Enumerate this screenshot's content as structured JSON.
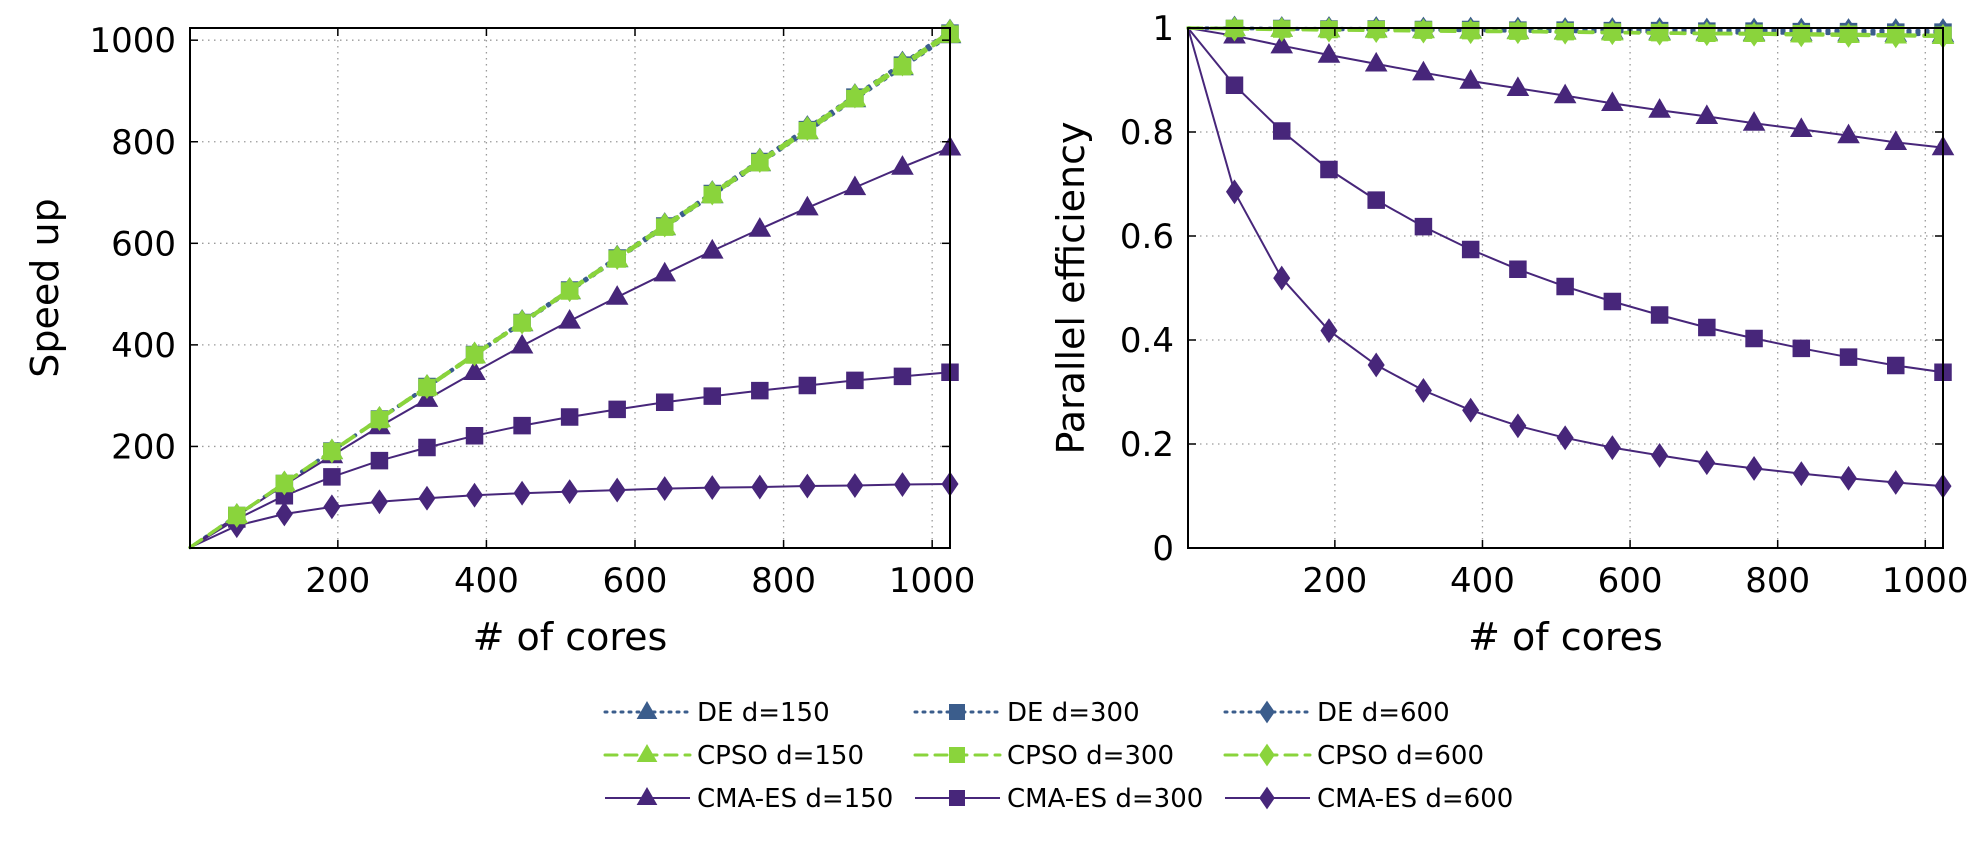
{
  "chart_data": [
    {
      "type": "line",
      "xlabel": "# of cores",
      "ylabel": "Speed up",
      "xlim": [
        1,
        1024
      ],
      "ylim": [
        0,
        1024
      ],
      "xticks": [
        200,
        400,
        600,
        800,
        1000
      ],
      "yticks": [
        200,
        400,
        600,
        800,
        1000
      ],
      "grid": true,
      "x": [
        1,
        64,
        128,
        192,
        256,
        320,
        384,
        448,
        512,
        576,
        640,
        704,
        768,
        832,
        896,
        960,
        1024
      ],
      "series": [
        {
          "name": "DE d=150",
          "values": [
            1,
            63,
            127,
            190,
            253,
            316,
            379,
            442,
            505,
            568,
            631,
            694,
            757,
            820,
            883,
            946,
            1009
          ]
        },
        {
          "name": "DE d=300",
          "values": [
            1,
            64,
            127,
            191,
            254,
            318,
            381,
            444,
            508,
            571,
            634,
            698,
            761,
            824,
            888,
            951,
            1014
          ]
        },
        {
          "name": "DE d=600",
          "values": [
            1,
            64,
            128,
            191,
            255,
            318,
            382,
            446,
            509,
            573,
            637,
            700,
            764,
            828,
            891,
            955,
            1018
          ]
        },
        {
          "name": "CPSO d=150",
          "values": [
            1,
            64,
            127,
            190,
            253,
            316,
            379,
            443,
            506,
            569,
            632,
            695,
            758,
            821,
            885,
            948,
            1011
          ]
        },
        {
          "name": "CPSO d=300",
          "values": [
            1,
            64,
            127,
            190,
            253,
            316,
            380,
            443,
            506,
            569,
            632,
            696,
            759,
            822,
            885,
            948,
            1012
          ]
        },
        {
          "name": "CPSO d=600",
          "values": [
            1,
            64,
            128,
            191,
            255,
            318,
            382,
            445,
            509,
            572,
            636,
            699,
            763,
            826,
            890,
            953,
            1017
          ]
        },
        {
          "name": "CMA-ES d=150",
          "values": [
            1,
            63,
            124,
            182,
            239,
            293,
            346,
            398,
            447,
            494,
            540,
            585,
            628,
            670,
            710,
            750,
            788
          ]
        },
        {
          "name": "CMA-ES d=300",
          "values": [
            1,
            57,
            103,
            140,
            172,
            198,
            221,
            241,
            258,
            273,
            287,
            299,
            310,
            320,
            330,
            338,
            346
          ]
        },
        {
          "name": "CMA-ES d=600",
          "values": [
            1,
            44,
            67,
            81,
            91,
            98,
            104,
            108,
            111,
            114,
            117,
            119,
            120,
            122,
            123,
            125,
            126
          ]
        }
      ]
    },
    {
      "type": "line",
      "xlabel": "# of cores",
      "ylabel": "Parallel efficiency",
      "xlim": [
        1,
        1024
      ],
      "ylim": [
        0,
        1
      ],
      "xticks": [
        200,
        400,
        600,
        800,
        1000
      ],
      "yticks": [
        0,
        0.2,
        0.4,
        0.6,
        0.8,
        1
      ],
      "grid": true,
      "x": [
        1,
        64,
        128,
        192,
        256,
        320,
        384,
        448,
        512,
        576,
        640,
        704,
        768,
        832,
        896,
        960,
        1024
      ],
      "series": [
        {
          "name": "DE d=150",
          "values": [
            1,
            0.999,
            0.998,
            0.997,
            0.997,
            0.996,
            0.995,
            0.994,
            0.993,
            0.993,
            0.992,
            0.991,
            0.99,
            0.99,
            0.989,
            0.988,
            0.987
          ]
        },
        {
          "name": "DE d=300",
          "values": [
            1,
            0.999,
            0.999,
            0.998,
            0.998,
            0.997,
            0.997,
            0.996,
            0.996,
            0.995,
            0.995,
            0.994,
            0.994,
            0.993,
            0.993,
            0.992,
            0.992
          ]
        },
        {
          "name": "DE d=600",
          "values": [
            1,
            1,
            0.999,
            0.999,
            0.999,
            0.998,
            0.998,
            0.998,
            0.997,
            0.997,
            0.997,
            0.996,
            0.996,
            0.996,
            0.995,
            0.995,
            0.995
          ]
        },
        {
          "name": "CPSO d=150",
          "values": [
            1,
            0.999,
            0.998,
            0.997,
            0.996,
            0.995,
            0.994,
            0.993,
            0.992,
            0.991,
            0.99,
            0.989,
            0.988,
            0.987,
            0.986,
            0.985,
            0.984
          ]
        },
        {
          "name": "CPSO d=300",
          "values": [
            1,
            0.999,
            0.998,
            0.997,
            0.997,
            0.996,
            0.995,
            0.994,
            0.993,
            0.992,
            0.991,
            0.99,
            0.99,
            0.989,
            0.988,
            0.987,
            0.986
          ]
        },
        {
          "name": "CPSO d=600",
          "values": [
            1,
            0.998,
            0.997,
            0.996,
            0.995,
            0.994,
            0.993,
            0.993,
            0.992,
            0.991,
            0.99,
            0.989,
            0.988,
            0.987,
            0.986,
            0.985,
            0.984
          ]
        },
        {
          "name": "CMA-ES d=150",
          "values": [
            1,
            0.985,
            0.966,
            0.948,
            0.931,
            0.914,
            0.898,
            0.884,
            0.87,
            0.855,
            0.842,
            0.83,
            0.817,
            0.805,
            0.793,
            0.78,
            0.77
          ]
        },
        {
          "name": "CMA-ES d=300",
          "values": [
            1,
            0.89,
            0.802,
            0.728,
            0.669,
            0.618,
            0.574,
            0.536,
            0.503,
            0.474,
            0.448,
            0.424,
            0.403,
            0.384,
            0.367,
            0.351,
            0.338
          ]
        },
        {
          "name": "CMA-ES d=600",
          "values": [
            1,
            0.685,
            0.519,
            0.418,
            0.352,
            0.303,
            0.265,
            0.235,
            0.212,
            0.193,
            0.178,
            0.164,
            0.153,
            0.143,
            0.134,
            0.126,
            0.119
          ]
        }
      ]
    }
  ],
  "legend": {
    "placement": "bottom",
    "entries": [
      {
        "name": "DE d=150",
        "style": "dotted",
        "marker": "triangle",
        "color": "#3b5d8c"
      },
      {
        "name": "DE d=300",
        "style": "dotted",
        "marker": "square",
        "color": "#3b5d8c"
      },
      {
        "name": "DE d=600",
        "style": "dotted",
        "marker": "diamond",
        "color": "#3b5d8c"
      },
      {
        "name": "CPSO d=150",
        "style": "dashed",
        "marker": "triangle",
        "color": "#8ad43c"
      },
      {
        "name": "CPSO d=300",
        "style": "dashed",
        "marker": "square",
        "color": "#8ad43c"
      },
      {
        "name": "CPSO d=600",
        "style": "dashed",
        "marker": "diamond",
        "color": "#8ad43c"
      },
      {
        "name": "CMA-ES d=150",
        "style": "solid",
        "marker": "triangle",
        "color": "#47267a"
      },
      {
        "name": "CMA-ES d=300",
        "style": "solid",
        "marker": "square",
        "color": "#47267a"
      },
      {
        "name": "CMA-ES d=600",
        "style": "solid",
        "marker": "diamond",
        "color": "#47267a"
      }
    ]
  }
}
